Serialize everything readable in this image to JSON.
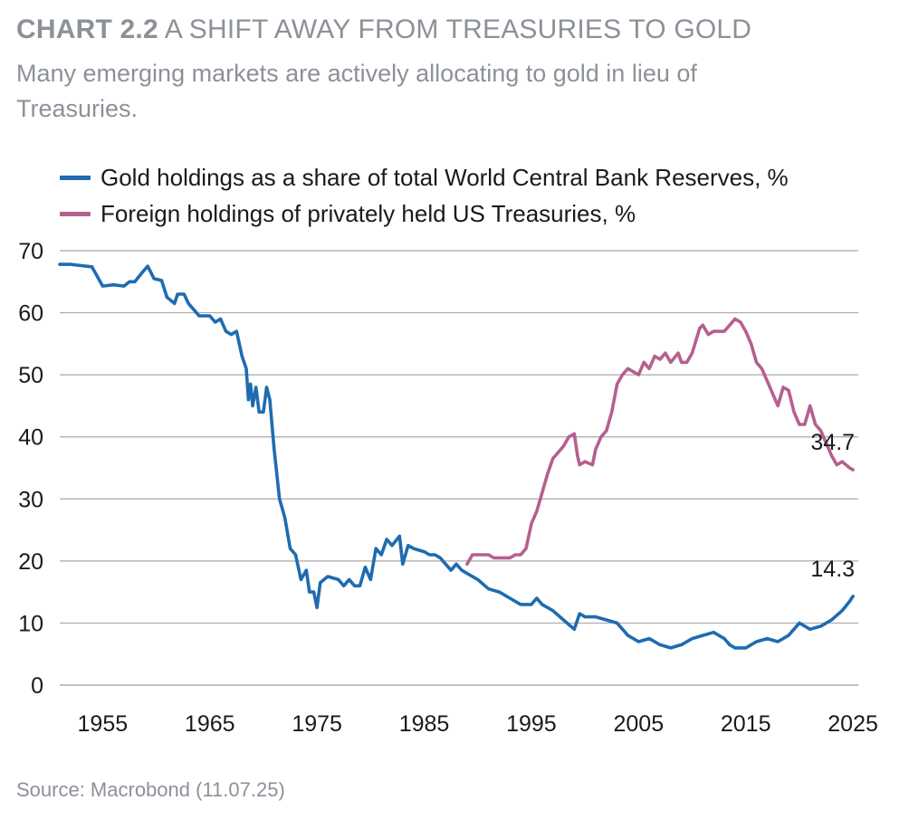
{
  "header": {
    "title_bold": "CHART 2.2",
    "title_rest": "A SHIFT AWAY FROM TREASURIES TO GOLD",
    "subtitle": "Many emerging markets are actively allocating to gold in lieu of Treasuries."
  },
  "source": "Source: Macrobond (11.07.25)",
  "chart_data": {
    "type": "line",
    "xlim": [
      1951,
      2025.5
    ],
    "ylim": [
      0,
      70
    ],
    "x_ticks": [
      "1955",
      "1965",
      "1975",
      "1985",
      "1995",
      "2005",
      "2015",
      "2025"
    ],
    "y_ticks": [
      "0",
      "10",
      "20",
      "30",
      "40",
      "50",
      "60",
      "70"
    ],
    "grid": "horizontal",
    "legend_position": "top-left",
    "series": [
      {
        "name": "Gold holdings as a share of total World Central Bank Reserves, %",
        "color": "#1f6bb0",
        "end_label": "14.3",
        "points": [
          [
            1951,
            67.8
          ],
          [
            1952,
            67.8
          ],
          [
            1953,
            67.6
          ],
          [
            1954,
            67.4
          ],
          [
            1955,
            64.3
          ],
          [
            1956,
            64.5
          ],
          [
            1957,
            64.3
          ],
          [
            1957.5,
            65
          ],
          [
            1958,
            65
          ],
          [
            1958.7,
            66.5
          ],
          [
            1959.2,
            67.5
          ],
          [
            1959.8,
            65.5
          ],
          [
            1960.5,
            65.2
          ],
          [
            1961,
            62.5
          ],
          [
            1961.7,
            61.5
          ],
          [
            1962,
            63
          ],
          [
            1962.6,
            63
          ],
          [
            1963,
            61.5
          ],
          [
            1963.5,
            60.5
          ],
          [
            1964,
            59.5
          ],
          [
            1965,
            59.5
          ],
          [
            1965.5,
            58.5
          ],
          [
            1966,
            59
          ],
          [
            1966.5,
            57
          ],
          [
            1967,
            56.5
          ],
          [
            1967.5,
            57
          ],
          [
            1968,
            53
          ],
          [
            1968.4,
            51
          ],
          [
            1968.6,
            46
          ],
          [
            1968.8,
            48.5
          ],
          [
            1969,
            45
          ],
          [
            1969.3,
            48
          ],
          [
            1969.6,
            44
          ],
          [
            1970,
            44
          ],
          [
            1970.3,
            48
          ],
          [
            1970.6,
            46
          ],
          [
            1971,
            38
          ],
          [
            1971.5,
            30
          ],
          [
            1972,
            27
          ],
          [
            1972.5,
            22
          ],
          [
            1973,
            21
          ],
          [
            1973.5,
            17
          ],
          [
            1974,
            18.5
          ],
          [
            1974.3,
            15
          ],
          [
            1974.7,
            15
          ],
          [
            1975,
            12.5
          ],
          [
            1975.3,
            16.5
          ],
          [
            1976,
            17.5
          ],
          [
            1977,
            17
          ],
          [
            1977.5,
            16
          ],
          [
            1978,
            17
          ],
          [
            1978.5,
            16
          ],
          [
            1979,
            16
          ],
          [
            1979.5,
            19
          ],
          [
            1980,
            17
          ],
          [
            1980.5,
            22
          ],
          [
            1981,
            21
          ],
          [
            1981.5,
            23.5
          ],
          [
            1982,
            22.5
          ],
          [
            1982.7,
            24
          ],
          [
            1983,
            19.5
          ],
          [
            1983.5,
            22.5
          ],
          [
            1984,
            22
          ],
          [
            1985,
            21.5
          ],
          [
            1985.5,
            21
          ],
          [
            1986,
            21
          ],
          [
            1986.5,
            20.5
          ],
          [
            1987,
            19.5
          ],
          [
            1987.5,
            18.5
          ],
          [
            1988,
            19.5
          ],
          [
            1988.5,
            18.5
          ],
          [
            1989,
            18
          ],
          [
            1990,
            17
          ],
          [
            1991,
            15.5
          ],
          [
            1992,
            15
          ],
          [
            1993,
            14
          ],
          [
            1994,
            13
          ],
          [
            1995,
            13
          ],
          [
            1995.5,
            14
          ],
          [
            1996,
            13
          ],
          [
            1997,
            12
          ],
          [
            1998,
            10.5
          ],
          [
            1999,
            9
          ],
          [
            1999.5,
            11.5
          ],
          [
            2000,
            11
          ],
          [
            2001,
            11
          ],
          [
            2002,
            10.5
          ],
          [
            2003,
            10
          ],
          [
            2004,
            8
          ],
          [
            2005,
            7
          ],
          [
            2006,
            7.5
          ],
          [
            2007,
            6.5
          ],
          [
            2008,
            6
          ],
          [
            2009,
            6.5
          ],
          [
            2010,
            7.5
          ],
          [
            2011,
            8
          ],
          [
            2012,
            8.5
          ],
          [
            2013,
            7.5
          ],
          [
            2013.5,
            6.5
          ],
          [
            2014,
            6
          ],
          [
            2015,
            6
          ],
          [
            2016,
            7
          ],
          [
            2017,
            7.5
          ],
          [
            2018,
            7
          ],
          [
            2019,
            8
          ],
          [
            2020,
            10
          ],
          [
            2021,
            9
          ],
          [
            2022,
            9.5
          ],
          [
            2023,
            10.5
          ],
          [
            2024,
            12
          ],
          [
            2024.7,
            13.5
          ],
          [
            2025,
            14.3
          ]
        ]
      },
      {
        "name": "Foreign holdings of privately held US Treasuries, %",
        "color": "#b5608f",
        "end_label": "34.7",
        "points": [
          [
            1989,
            19.5
          ],
          [
            1989.5,
            21
          ],
          [
            1990,
            21
          ],
          [
            1991,
            21
          ],
          [
            1991.5,
            20.5
          ],
          [
            1992,
            20.5
          ],
          [
            1993,
            20.5
          ],
          [
            1993.5,
            21
          ],
          [
            1994,
            21
          ],
          [
            1994.5,
            22
          ],
          [
            1995,
            26
          ],
          [
            1995.5,
            28
          ],
          [
            1996,
            31
          ],
          [
            1996.5,
            34
          ],
          [
            1997,
            36.5
          ],
          [
            1997.5,
            37.5
          ],
          [
            1998,
            38.5
          ],
          [
            1998.5,
            40
          ],
          [
            1999,
            40.5
          ],
          [
            1999.3,
            37
          ],
          [
            1999.5,
            35.5
          ],
          [
            2000,
            36
          ],
          [
            2000.7,
            35.5
          ],
          [
            2001,
            38
          ],
          [
            2001.5,
            40
          ],
          [
            2002,
            41
          ],
          [
            2002.5,
            44
          ],
          [
            2003,
            48.5
          ],
          [
            2003.5,
            50
          ],
          [
            2004,
            51
          ],
          [
            2005,
            50
          ],
          [
            2005.5,
            52
          ],
          [
            2006,
            51
          ],
          [
            2006.5,
            53
          ],
          [
            2007,
            52.5
          ],
          [
            2007.5,
            53.5
          ],
          [
            2008,
            52
          ],
          [
            2008.7,
            53.5
          ],
          [
            2009,
            52
          ],
          [
            2009.5,
            52
          ],
          [
            2010,
            53.5
          ],
          [
            2010.7,
            57.5
          ],
          [
            2011,
            58
          ],
          [
            2011.5,
            56.5
          ],
          [
            2012,
            57
          ],
          [
            2013,
            57
          ],
          [
            2013.5,
            58
          ],
          [
            2014,
            59
          ],
          [
            2014.5,
            58.5
          ],
          [
            2015,
            57
          ],
          [
            2015.5,
            55
          ],
          [
            2016,
            52
          ],
          [
            2016.5,
            51
          ],
          [
            2017,
            49
          ],
          [
            2017.5,
            47
          ],
          [
            2018,
            45
          ],
          [
            2018.5,
            48
          ],
          [
            2019,
            47.5
          ],
          [
            2019.5,
            44
          ],
          [
            2020,
            42
          ],
          [
            2020.5,
            42
          ],
          [
            2021,
            45
          ],
          [
            2021.5,
            42
          ],
          [
            2022,
            41
          ],
          [
            2022.5,
            39
          ],
          [
            2023,
            37
          ],
          [
            2023.5,
            35.5
          ],
          [
            2024,
            36
          ],
          [
            2024.7,
            35
          ],
          [
            2025,
            34.7
          ]
        ]
      }
    ]
  }
}
